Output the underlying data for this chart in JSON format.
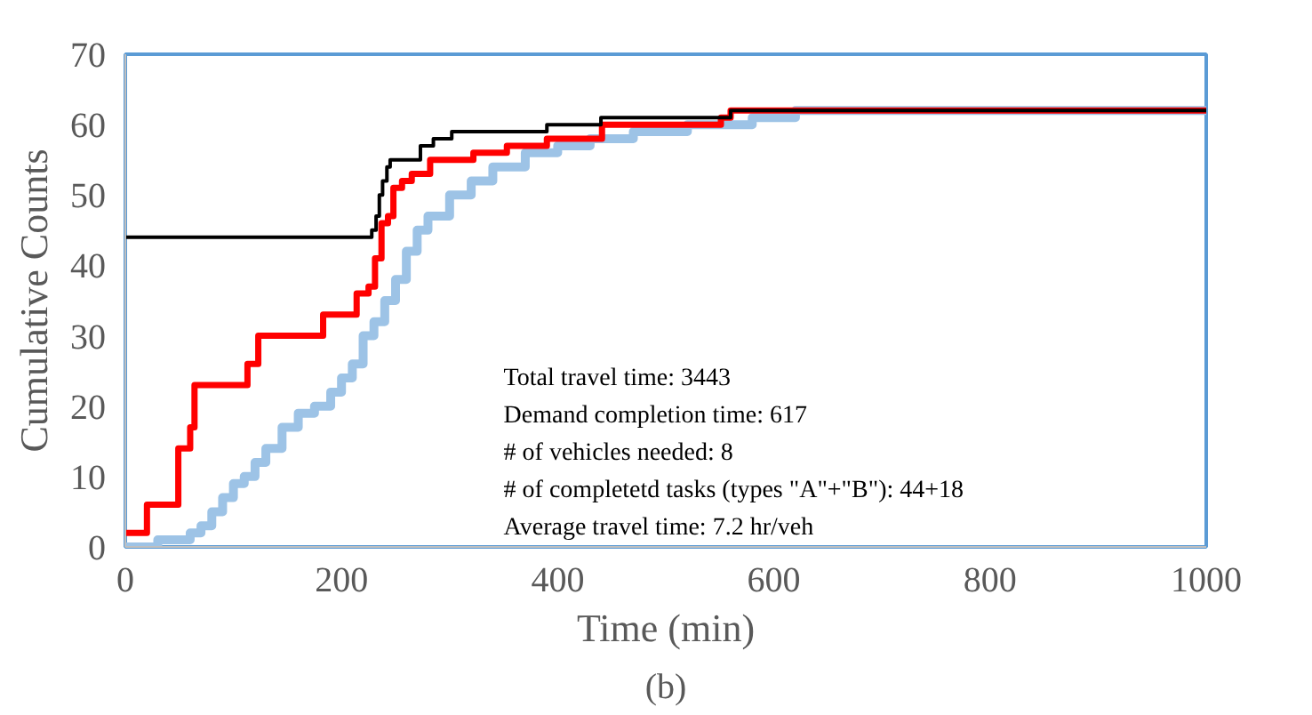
{
  "chart_data": {
    "type": "step",
    "xlabel": "Time (min)",
    "ylabel": "Cumulative Counts",
    "xlim": [
      0,
      1000
    ],
    "xticks": [
      0,
      200,
      400,
      600,
      800,
      1000
    ],
    "ylim": [
      0,
      70
    ],
    "yticks": [
      0,
      10,
      20,
      30,
      40,
      50,
      60,
      70
    ],
    "grid": false,
    "marker": "none",
    "line_style": "solid",
    "annotations": [
      "Total travel time: 3443",
      "Demand completion time: 617",
      "# of vehicles needed: 8",
      "# of completetd tasks (types \"A\"+\"B\"): 44+18",
      "Average travel time: 7.2 hr/veh",
      "(b)"
    ],
    "series": [
      {
        "color": "#9dc3e6",
        "x": [
          0,
          30,
          50,
          60,
          70,
          80,
          90,
          100,
          110,
          120,
          130,
          145,
          160,
          175,
          190,
          200,
          210,
          220,
          230,
          240,
          250,
          260,
          270,
          280,
          300,
          320,
          340,
          370,
          400,
          430,
          470,
          520,
          580,
          620,
          1000
        ],
        "values": [
          0,
          1,
          1,
          2,
          3,
          5,
          7,
          9,
          10,
          12,
          14,
          17,
          19,
          20,
          22,
          24,
          26,
          30,
          32,
          35,
          38,
          42,
          45,
          47,
          50,
          52,
          54,
          56,
          57,
          58,
          59,
          60,
          61,
          62,
          62
        ]
      },
      {
        "color": "#ff0000",
        "x": [
          0,
          20,
          49,
          60,
          64,
          113,
          123,
          183,
          214,
          225,
          231,
          237,
          243,
          248,
          256,
          265,
          282,
          298,
          322,
          353,
          390,
          441,
          551,
          560,
          1000
        ],
        "values": [
          2,
          6,
          14,
          17,
          23,
          26,
          30,
          33,
          36,
          37,
          41,
          46,
          47,
          51,
          52,
          53,
          55,
          55,
          56,
          57,
          58,
          60,
          61,
          62,
          62
        ]
      },
      {
        "color": "#000000",
        "x": [
          0,
          228,
          232,
          235,
          238,
          242,
          245,
          250,
          273,
          285,
          302,
          390,
          440,
          560,
          1000
        ],
        "values": [
          44,
          45,
          47,
          50,
          52,
          54,
          55,
          55,
          57,
          58,
          59,
          60,
          61,
          62,
          62
        ]
      }
    ]
  }
}
